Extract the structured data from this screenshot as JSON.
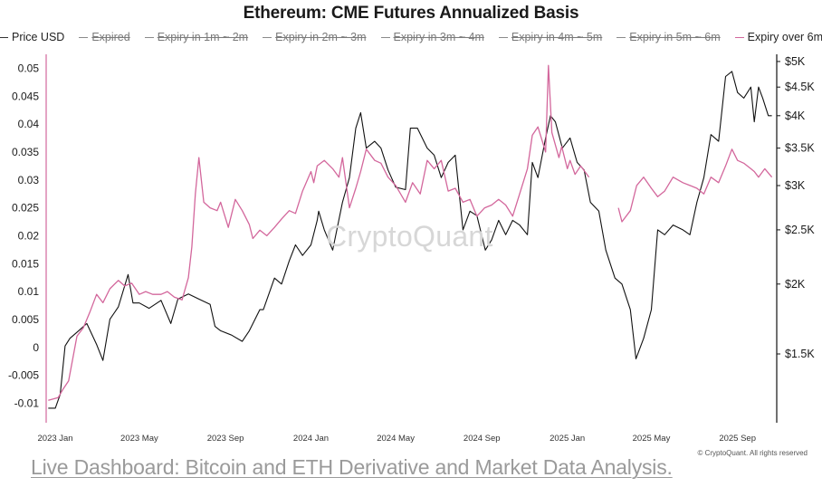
{
  "chart_data": {
    "type": "line",
    "title": "Ethereum: CME Futures Annualized Basis",
    "legend": [
      {
        "label": "Price USD",
        "color": "#333333",
        "hidden": false
      },
      {
        "label": "Expired",
        "color": "#8a8a8a",
        "hidden": true
      },
      {
        "label": "Expiry in 1m ~ 2m",
        "color": "#8a8a8a",
        "hidden": true
      },
      {
        "label": "Expiry in 2m ~ 3m",
        "color": "#8a8a8a",
        "hidden": true
      },
      {
        "label": "Expiry in 3m ~ 4m",
        "color": "#8a8a8a",
        "hidden": true
      },
      {
        "label": "Expiry in 4m ~ 5m",
        "color": "#8a8a8a",
        "hidden": true
      },
      {
        "label": "Expiry in 5m ~ 6m",
        "color": "#8a8a8a",
        "hidden": true
      },
      {
        "label": "Expiry over 6m",
        "color": "#d3679c",
        "hidden": false
      }
    ],
    "x_ticks": [
      "2023 Jan",
      "2023 May",
      "2023 Sep",
      "2024 Jan",
      "2024 May",
      "2024 Sep",
      "2025 Jan",
      "2025 May",
      "2025 Sep"
    ],
    "left_axis": {
      "ticks": [
        "0.05",
        "0.045",
        "0.04",
        "0.035",
        "0.03",
        "0.025",
        "0.02",
        "0.015",
        "0.01",
        "0.005",
        "0",
        "-0.005",
        "-0.01"
      ],
      "range": [
        -0.0135,
        0.0525
      ]
    },
    "right_axis": {
      "scale": "log",
      "ticks": [
        {
          "label": "$5K",
          "value": 5000
        },
        {
          "label": "$4.5K",
          "value": 4500
        },
        {
          "label": "$4K",
          "value": 4000
        },
        {
          "label": "$3.5K",
          "value": 3500
        },
        {
          "label": "$3K",
          "value": 3000
        },
        {
          "label": "$2.5K",
          "value": 2500
        },
        {
          "label": "$2K",
          "value": 2000
        },
        {
          "label": "$1.5K",
          "value": 1500
        }
      ],
      "range": [
        1130,
        5150
      ]
    },
    "x_range": [
      "2022-12-19",
      "2025-10-27"
    ],
    "series": [
      {
        "name": "Price USD",
        "axis": "right",
        "color": "#111111",
        "x": [
          "2022-12-22",
          "2023-01-01",
          "2023-01-08",
          "2023-01-15",
          "2023-01-22",
          "2023-02-01",
          "2023-02-15",
          "2023-03-01",
          "2023-03-10",
          "2023-03-20",
          "2023-04-01",
          "2023-04-15",
          "2023-04-22",
          "2023-05-01",
          "2023-05-15",
          "2023-06-01",
          "2023-06-15",
          "2023-06-25",
          "2023-07-10",
          "2023-07-25",
          "2023-08-10",
          "2023-08-17",
          "2023-08-25",
          "2023-09-10",
          "2023-09-25",
          "2023-10-05",
          "2023-10-20",
          "2023-10-25",
          "2023-11-10",
          "2023-11-20",
          "2023-12-01",
          "2023-12-10",
          "2023-12-20",
          "2024-01-01",
          "2024-01-10",
          "2024-01-12",
          "2024-01-20",
          "2024-02-01",
          "2024-02-15",
          "2024-02-25",
          "2024-03-05",
          "2024-03-12",
          "2024-03-20",
          "2024-04-01",
          "2024-04-10",
          "2024-04-20",
          "2024-05-01",
          "2024-05-15",
          "2024-05-22",
          "2024-06-01",
          "2024-06-15",
          "2024-06-25",
          "2024-07-05",
          "2024-07-15",
          "2024-07-25",
          "2024-08-05",
          "2024-08-15",
          "2024-08-25",
          "2024-09-06",
          "2024-09-15",
          "2024-09-25",
          "2024-10-05",
          "2024-10-15",
          "2024-10-25",
          "2024-11-05",
          "2024-11-12",
          "2024-11-20",
          "2024-12-01",
          "2024-12-08",
          "2024-12-15",
          "2024-12-25",
          "2025-01-05",
          "2025-01-15",
          "2025-01-25",
          "2025-02-03",
          "2025-02-15",
          "2025-02-25",
          "2025-03-10",
          "2025-03-20",
          "2025-04-01",
          "2025-04-09",
          "2025-04-20",
          "2025-05-01",
          "2025-05-10",
          "2025-05-20",
          "2025-06-01",
          "2025-06-15",
          "2025-06-25",
          "2025-07-05",
          "2025-07-15",
          "2025-07-25",
          "2025-08-05",
          "2025-08-15",
          "2025-08-24",
          "2025-09-01",
          "2025-09-10",
          "2025-09-20",
          "2025-09-25",
          "2025-10-01",
          "2025-10-07",
          "2025-10-15",
          "2025-10-20"
        ],
        "y": [
          1200,
          1200,
          1270,
          1550,
          1600,
          1640,
          1700,
          1560,
          1460,
          1730,
          1820,
          2080,
          1850,
          1850,
          1810,
          1870,
          1700,
          1880,
          1920,
          1880,
          1840,
          1680,
          1650,
          1620,
          1580,
          1650,
          1800,
          1800,
          2050,
          2000,
          2200,
          2350,
          2250,
          2350,
          2600,
          2700,
          2500,
          2300,
          2800,
          3100,
          3800,
          4050,
          3500,
          3600,
          3500,
          3200,
          2980,
          2950,
          3800,
          3800,
          3500,
          3400,
          3100,
          3300,
          3400,
          2500,
          2700,
          2650,
          2300,
          2400,
          2600,
          2450,
          2600,
          2550,
          2450,
          3300,
          3100,
          3650,
          4000,
          3900,
          3500,
          3650,
          3300,
          3200,
          2800,
          2700,
          2300,
          2050,
          2000,
          1800,
          1470,
          1600,
          1800,
          2500,
          2450,
          2550,
          2500,
          2450,
          2800,
          3100,
          3700,
          3600,
          4700,
          4800,
          4400,
          4300,
          4500,
          3900,
          4500,
          4300,
          4000,
          4000
        ]
      },
      {
        "name": "Expiry over 6m",
        "axis": "left",
        "color": "#d3679c",
        "x": [
          "2022-12-22",
          "2023-01-05",
          "2023-01-12",
          "2023-01-20",
          "2023-02-01",
          "2023-02-10",
          "2023-02-20",
          "2023-03-01",
          "2023-03-10",
          "2023-03-20",
          "2023-04-01",
          "2023-04-10",
          "2023-04-20",
          "2023-05-01",
          "2023-05-10",
          "2023-05-20",
          "2023-06-01",
          "2023-06-10",
          "2023-06-20",
          "2023-07-01",
          "2023-07-10",
          "2023-07-15",
          "2023-07-20",
          "2023-07-25",
          "2023-08-01",
          "2023-08-10",
          "2023-08-20",
          "2023-08-25",
          "2023-09-05",
          "2023-09-15",
          "2023-09-25",
          "2023-10-05",
          "2023-10-10",
          "2023-10-20",
          "2023-10-30",
          "2023-11-10",
          "2023-11-20",
          "2023-12-01",
          "2023-12-10",
          "2023-12-20",
          "2024-01-01",
          "2024-01-05",
          "2024-01-10",
          "2024-01-20",
          "2024-02-01",
          "2024-02-10",
          "2024-02-15",
          "2024-02-25",
          "2024-03-05",
          "2024-03-12",
          "2024-03-20",
          "2024-04-01",
          "2024-04-10",
          "2024-04-20",
          "2024-05-01",
          "2024-05-15",
          "2024-05-25",
          "2024-06-05",
          "2024-06-15",
          "2024-06-25",
          "2024-07-05",
          "2024-07-15",
          "2024-07-25",
          "2024-08-05",
          "2024-08-15",
          "2024-08-25",
          "2024-09-05",
          "2024-09-15",
          "2024-09-25",
          "2024-10-05",
          "2024-10-15",
          "2024-10-25",
          "2024-11-05",
          "2024-11-12",
          "2024-11-20",
          "2024-12-01",
          "2024-12-05",
          "2024-12-10",
          "2024-12-20",
          "2024-12-24",
          "2025-01-01",
          "2025-01-05",
          "2025-01-12",
          "2025-01-20",
          "2025-02-01"
        ],
        "y": [
          -0.0095,
          -0.009,
          -0.0075,
          -0.006,
          0.002,
          0.0035,
          0.0065,
          0.0095,
          0.008,
          0.0105,
          0.012,
          0.011,
          0.0115,
          0.0095,
          0.01,
          0.0095,
          0.0095,
          0.01,
          0.009,
          0.0085,
          0.0125,
          0.018,
          0.0275,
          0.034,
          0.026,
          0.025,
          0.0245,
          0.026,
          0.0215,
          0.0265,
          0.0245,
          0.022,
          0.0195,
          0.021,
          0.02,
          0.0215,
          0.023,
          0.0245,
          0.024,
          0.028,
          0.0315,
          0.0295,
          0.0325,
          0.0335,
          0.032,
          0.0305,
          0.034,
          0.025,
          0.0285,
          0.0315,
          0.0355,
          0.0335,
          0.033,
          0.0305,
          0.029,
          0.026,
          0.0295,
          0.0275,
          0.0335,
          0.032,
          0.0335,
          0.028,
          0.0285,
          0.026,
          0.0265,
          0.0235,
          0.025,
          0.0255,
          0.0265,
          0.0255,
          0.0235,
          0.0275,
          0.032,
          0.038,
          0.0395,
          0.035,
          0.0505,
          0.0385,
          0.034,
          0.036,
          0.032,
          0.0335,
          0.031,
          0.0325,
          0.0305
        ]
      },
      {
        "name": "Expiry over 6m",
        "axis": "left",
        "color": "#d3679c",
        "x": [
          "2025-03-15",
          "2025-03-20",
          "2025-04-01",
          "2025-04-10",
          "2025-04-20",
          "2025-05-01",
          "2025-05-10",
          "2025-05-20",
          "2025-06-01",
          "2025-06-15",
          "2025-06-25",
          "2025-07-05",
          "2025-07-15",
          "2025-07-25",
          "2025-08-05",
          "2025-08-15",
          "2025-08-24",
          "2025-09-01",
          "2025-09-10",
          "2025-09-20",
          "2025-09-25",
          "2025-10-01",
          "2025-10-10",
          "2025-10-20"
        ],
        "y": [
          0.025,
          0.0225,
          0.0245,
          0.029,
          0.0305,
          0.0285,
          0.027,
          0.028,
          0.0305,
          0.0295,
          0.029,
          0.0285,
          0.0275,
          0.0305,
          0.0295,
          0.0325,
          0.0355,
          0.0335,
          0.033,
          0.032,
          0.0315,
          0.0305,
          0.032,
          0.0305
        ]
      }
    ]
  },
  "watermark": "CryptoQuant",
  "copyright": "© CryptoQuant. All rights reserved",
  "footer_link": "Live Dashboard: Bitcoin and ETH Derivative and Market Data Analysis."
}
